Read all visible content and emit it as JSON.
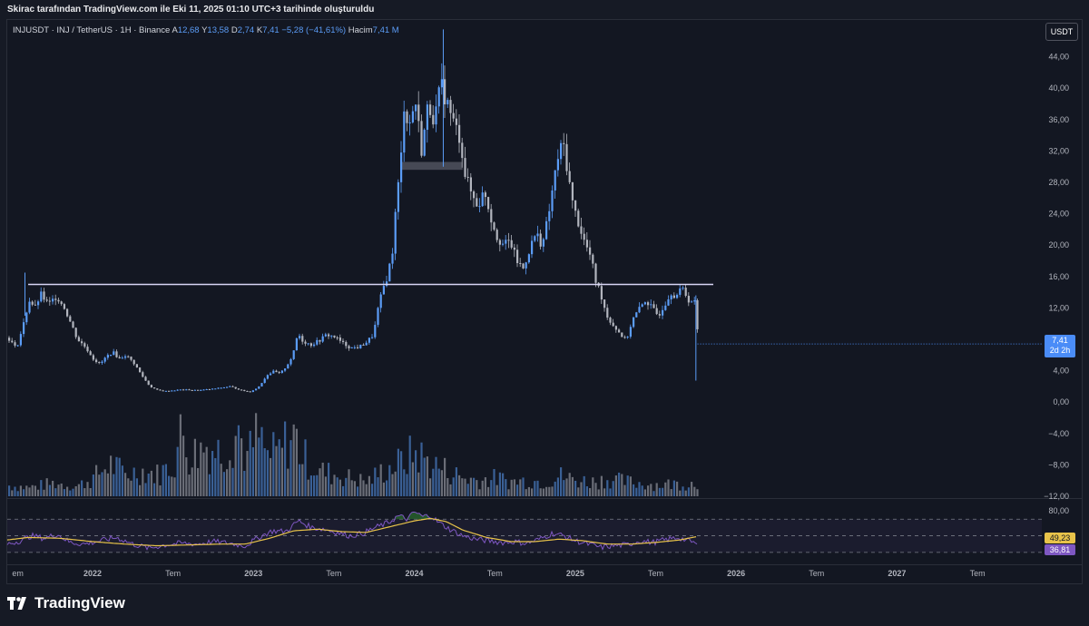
{
  "caption": "Skirac tarafından TradingView.com ile Eki 11, 2025 01:10 UTC+3 tarihinde oluşturuldu",
  "header": {
    "symbol": "INJUSDT · INJ / TetherUS · 1H · Binance",
    "open_label": "A",
    "open": "12,68",
    "high_label": "Y",
    "high": "13,58",
    "low_label": "D",
    "low": "2,74",
    "close_label": "K",
    "close": "7,41",
    "change": "−5,28 (−41,61%)",
    "volume_label": "Hacim",
    "volume": "7,41 M"
  },
  "currency_badge": "USDT",
  "last_price_badge": {
    "price": "7,41",
    "countdown": "2d 2h"
  },
  "rsi_badges": {
    "ma": "49,23",
    "rsi": "36,81"
  },
  "brand": "TradingView",
  "colors": {
    "up": "#5b9cf6",
    "down": "#b2b5be",
    "rsi_line": "#7e57c2",
    "rsi_ma": "#e8c34a",
    "level_line": "#d8d6f5",
    "overbought_fill": "#2e7d32"
  },
  "chart_data": {
    "type": "line",
    "title": "INJUSDT · INJ / TetherUS · 1H · Binance",
    "price_axis": {
      "ticks": [
        "44,00",
        "40,00",
        "36,00",
        "32,00",
        "28,00",
        "24,00",
        "20,00",
        "16,00",
        "12,00",
        "8,00",
        "4,00",
        "0,00",
        "−4,00",
        "−8,00",
        "−12,00"
      ],
      "ylim": [
        -12,
        48
      ]
    },
    "time_axis": {
      "ticks": [
        "em",
        "2022",
        "Tem",
        "2023",
        "Tem",
        "2024",
        "Tem",
        "2025",
        "Tem",
        "2026",
        "Tem",
        "2027",
        "Tem"
      ],
      "bold": [
        false,
        true,
        false,
        true,
        false,
        true,
        false,
        true,
        false,
        true,
        false,
        true,
        false
      ],
      "range": [
        2021.47,
        2027.9
      ]
    },
    "rsi_axis": {
      "ticks": [
        "80,00"
      ],
      "ylim": [
        20,
        90
      ],
      "levels": [
        70,
        30
      ]
    },
    "horizontal_line": {
      "price": 15.0,
      "from_year": 2021.6
    },
    "highlight_zone": {
      "from_year": 2023.92,
      "to_year": 2024.3,
      "price_low": 29.6,
      "price_high": 30.6
    },
    "price_path": [
      [
        2021.47,
        8.2
      ],
      [
        2021.52,
        6.8
      ],
      [
        2021.56,
        9.5
      ],
      [
        2021.6,
        13.0
      ],
      [
        2021.64,
        12.0
      ],
      [
        2021.67,
        13.8
      ],
      [
        2021.72,
        12.4
      ],
      [
        2021.77,
        13.5
      ],
      [
        2021.82,
        12.0
      ],
      [
        2021.86,
        10.0
      ],
      [
        2021.9,
        8.0
      ],
      [
        2021.95,
        7.0
      ],
      [
        2022.0,
        5.5
      ],
      [
        2022.04,
        4.8
      ],
      [
        2022.08,
        5.8
      ],
      [
        2022.12,
        6.4
      ],
      [
        2022.16,
        5.5
      ],
      [
        2022.2,
        6.0
      ],
      [
        2022.25,
        5.0
      ],
      [
        2022.3,
        3.4
      ],
      [
        2022.35,
        2.0
      ],
      [
        2022.4,
        1.5
      ],
      [
        2022.45,
        1.4
      ],
      [
        2022.55,
        1.6
      ],
      [
        2022.65,
        1.5
      ],
      [
        2022.75,
        1.7
      ],
      [
        2022.85,
        2.0
      ],
      [
        2022.92,
        1.5
      ],
      [
        2022.97,
        1.3
      ],
      [
        2023.02,
        1.8
      ],
      [
        2023.05,
        2.6
      ],
      [
        2023.08,
        3.5
      ],
      [
        2023.12,
        3.9
      ],
      [
        2023.16,
        3.6
      ],
      [
        2023.2,
        4.6
      ],
      [
        2023.24,
        6.0
      ],
      [
        2023.27,
        8.8
      ],
      [
        2023.3,
        7.8
      ],
      [
        2023.35,
        7.3
      ],
      [
        2023.4,
        7.8
      ],
      [
        2023.45,
        8.6
      ],
      [
        2023.5,
        8.3
      ],
      [
        2023.55,
        7.5
      ],
      [
        2023.6,
        6.9
      ],
      [
        2023.65,
        7.0
      ],
      [
        2023.7,
        7.7
      ],
      [
        2023.74,
        8.6
      ],
      [
        2023.77,
        12.0
      ],
      [
        2023.8,
        14.5
      ],
      [
        2023.83,
        16.3
      ],
      [
        2023.86,
        19.5
      ],
      [
        2023.88,
        25.0
      ],
      [
        2023.91,
        30.5
      ],
      [
        2023.93,
        38.0
      ],
      [
        2023.96,
        35.0
      ],
      [
        2024.0,
        38.5
      ],
      [
        2024.04,
        32.0
      ],
      [
        2024.08,
        38.0
      ],
      [
        2024.12,
        36.0
      ],
      [
        2024.16,
        40.5
      ],
      [
        2024.2,
        38.0
      ],
      [
        2024.24,
        35.5
      ],
      [
        2024.28,
        33.5
      ],
      [
        2024.31,
        29.0
      ],
      [
        2024.35,
        26.5
      ],
      [
        2024.39,
        25.0
      ],
      [
        2024.43,
        27.0
      ],
      [
        2024.47,
        23.5
      ],
      [
        2024.51,
        21.0
      ],
      [
        2024.55,
        20.0
      ],
      [
        2024.59,
        20.5
      ],
      [
        2024.63,
        18.0
      ],
      [
        2024.67,
        17.0
      ],
      [
        2024.71,
        19.5
      ],
      [
        2024.75,
        21.5
      ],
      [
        2024.79,
        20.0
      ],
      [
        2024.83,
        24.0
      ],
      [
        2024.86,
        28.0
      ],
      [
        2024.89,
        31.5
      ],
      [
        2024.92,
        33.0
      ],
      [
        2024.95,
        29.0
      ],
      [
        2024.98,
        25.0
      ],
      [
        2025.02,
        22.5
      ],
      [
        2025.05,
        20.5
      ],
      [
        2025.09,
        18.5
      ],
      [
        2025.12,
        15.5
      ],
      [
        2025.15,
        14.0
      ],
      [
        2025.19,
        11.0
      ],
      [
        2025.23,
        9.8
      ],
      [
        2025.27,
        8.8
      ],
      [
        2025.31,
        7.8
      ],
      [
        2025.35,
        10.5
      ],
      [
        2025.39,
        11.8
      ],
      [
        2025.43,
        13.0
      ],
      [
        2025.47,
        12.0
      ],
      [
        2025.51,
        11.0
      ],
      [
        2025.55,
        12.5
      ],
      [
        2025.59,
        14.0
      ],
      [
        2025.62,
        13.5
      ],
      [
        2025.66,
        14.5
      ],
      [
        2025.7,
        13.0
      ],
      [
        2025.74,
        12.68
      ],
      [
        2025.76,
        7.41
      ]
    ],
    "rsi_path": [
      [
        2021.47,
        40
      ],
      [
        2021.55,
        44
      ],
      [
        2021.62,
        50
      ],
      [
        2021.7,
        47
      ],
      [
        2021.78,
        52
      ],
      [
        2021.86,
        42
      ],
      [
        2021.95,
        40
      ],
      [
        2022.05,
        44
      ],
      [
        2022.15,
        48
      ],
      [
        2022.25,
        40
      ],
      [
        2022.35,
        35
      ],
      [
        2022.45,
        39
      ],
      [
        2022.55,
        41
      ],
      [
        2022.65,
        40
      ],
      [
        2022.75,
        43
      ],
      [
        2022.85,
        41
      ],
      [
        2022.95,
        38
      ],
      [
        2023.05,
        50
      ],
      [
        2023.12,
        56
      ],
      [
        2023.2,
        55
      ],
      [
        2023.28,
        68
      ],
      [
        2023.36,
        60
      ],
      [
        2023.44,
        58
      ],
      [
        2023.52,
        54
      ],
      [
        2023.6,
        50
      ],
      [
        2023.68,
        53
      ],
      [
        2023.76,
        60
      ],
      [
        2023.84,
        66
      ],
      [
        2023.9,
        74
      ],
      [
        2023.96,
        70
      ],
      [
        2024.0,
        79
      ],
      [
        2024.05,
        73
      ],
      [
        2024.1,
        75
      ],
      [
        2024.15,
        66
      ],
      [
        2024.22,
        58
      ],
      [
        2024.3,
        50
      ],
      [
        2024.38,
        46
      ],
      [
        2024.46,
        44
      ],
      [
        2024.55,
        42
      ],
      [
        2024.62,
        43
      ],
      [
        2024.7,
        41
      ],
      [
        2024.78,
        46
      ],
      [
        2024.86,
        53
      ],
      [
        2024.93,
        50
      ],
      [
        2025.0,
        44
      ],
      [
        2025.08,
        40
      ],
      [
        2025.16,
        36
      ],
      [
        2025.24,
        38
      ],
      [
        2025.32,
        39
      ],
      [
        2025.4,
        44
      ],
      [
        2025.48,
        42
      ],
      [
        2025.56,
        45
      ],
      [
        2025.64,
        48
      ],
      [
        2025.7,
        44
      ],
      [
        2025.74,
        42
      ],
      [
        2025.76,
        36.81
      ]
    ],
    "rsi_ma_path": [
      [
        2021.47,
        45
      ],
      [
        2021.6,
        48
      ],
      [
        2021.8,
        47
      ],
      [
        2022.0,
        43
      ],
      [
        2022.2,
        40
      ],
      [
        2022.4,
        38
      ],
      [
        2022.6,
        39
      ],
      [
        2022.8,
        40
      ],
      [
        2022.95,
        40
      ],
      [
        2023.1,
        47
      ],
      [
        2023.25,
        56
      ],
      [
        2023.4,
        58
      ],
      [
        2023.55,
        55
      ],
      [
        2023.7,
        54
      ],
      [
        2023.85,
        61
      ],
      [
        2024.0,
        68
      ],
      [
        2024.1,
        71
      ],
      [
        2024.2,
        67
      ],
      [
        2024.3,
        57
      ],
      [
        2024.45,
        48
      ],
      [
        2024.6,
        43
      ],
      [
        2024.75,
        43
      ],
      [
        2024.9,
        46
      ],
      [
        2025.05,
        44
      ],
      [
        2025.2,
        40
      ],
      [
        2025.35,
        40
      ],
      [
        2025.5,
        42
      ],
      [
        2025.65,
        45
      ],
      [
        2025.76,
        49.23
      ]
    ],
    "volume_profile": [
      [
        2021.47,
        0.15
      ],
      [
        2021.6,
        0.12
      ],
      [
        2021.75,
        0.18
      ],
      [
        2021.9,
        0.14
      ],
      [
        2022.0,
        0.25
      ],
      [
        2022.1,
        0.45
      ],
      [
        2022.2,
        0.3
      ],
      [
        2022.3,
        0.35
      ],
      [
        2022.4,
        0.3
      ],
      [
        2022.5,
        0.45
      ],
      [
        2022.55,
        0.9
      ],
      [
        2022.6,
        0.55
      ],
      [
        2022.7,
        0.7
      ],
      [
        2022.8,
        0.6
      ],
      [
        2022.9,
        0.95
      ],
      [
        2022.95,
        0.5
      ],
      [
        2023.02,
        0.85
      ],
      [
        2023.08,
        0.55
      ],
      [
        2023.15,
        0.6
      ],
      [
        2023.2,
        0.75
      ],
      [
        2023.25,
        0.85
      ],
      [
        2023.3,
        0.55
      ],
      [
        2023.4,
        0.35
      ],
      [
        2023.5,
        0.3
      ],
      [
        2023.6,
        0.25
      ],
      [
        2023.7,
        0.2
      ],
      [
        2023.8,
        0.35
      ],
      [
        2023.9,
        0.45
      ],
      [
        2024.0,
        0.6
      ],
      [
        2024.1,
        0.45
      ],
      [
        2024.2,
        0.35
      ],
      [
        2024.3,
        0.25
      ],
      [
        2024.4,
        0.22
      ],
      [
        2024.5,
        0.25
      ],
      [
        2024.6,
        0.2
      ],
      [
        2024.7,
        0.22
      ],
      [
        2024.8,
        0.2
      ],
      [
        2024.9,
        0.28
      ],
      [
        2025.0,
        0.22
      ],
      [
        2025.1,
        0.2
      ],
      [
        2025.2,
        0.24
      ],
      [
        2025.3,
        0.2
      ],
      [
        2025.4,
        0.18
      ],
      [
        2025.5,
        0.16
      ],
      [
        2025.6,
        0.17
      ],
      [
        2025.76,
        0.18
      ]
    ]
  }
}
